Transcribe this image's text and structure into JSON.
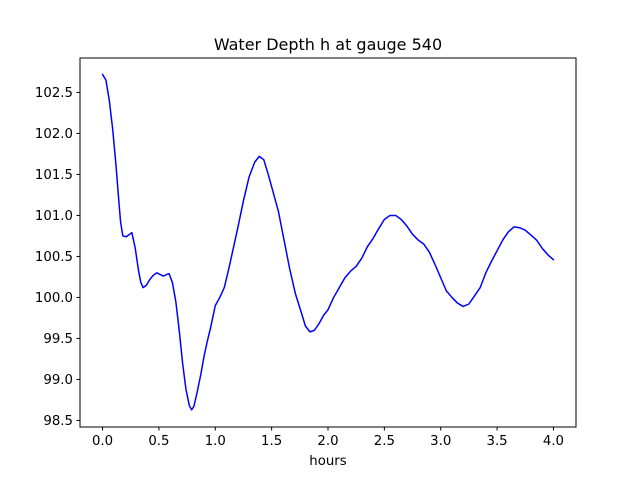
{
  "figure": {
    "background": "#ffffff",
    "title": "Water Depth h at gauge 540",
    "xlabel": "hours"
  },
  "colors": {
    "line": "#0000ff",
    "spine": "#000000",
    "text": "#000000",
    "background": "#ffffff"
  },
  "chart_data": {
    "type": "line",
    "title": "Water Depth h at gauge 540",
    "xlabel": "hours",
    "ylabel": "",
    "xlim": [
      -0.2,
      4.2
    ],
    "ylim": [
      98.42,
      102.92
    ],
    "grid": false,
    "legend": null,
    "line_color": "#0000ff",
    "line_width": 1.5,
    "xticks": [
      0.0,
      0.5,
      1.0,
      1.5,
      2.0,
      2.5,
      3.0,
      3.5,
      4.0
    ],
    "xtick_labels": [
      "0.0",
      "0.5",
      "1.0",
      "1.5",
      "2.0",
      "2.5",
      "3.0",
      "3.5",
      "4.0"
    ],
    "yticks": [
      98.5,
      99.0,
      99.5,
      100.0,
      100.5,
      101.0,
      101.5,
      102.0,
      102.5
    ],
    "ytick_labels": [
      "98.5",
      "99.0",
      "99.5",
      "100.0",
      "100.5",
      "101.0",
      "101.5",
      "102.0",
      "102.5"
    ],
    "series": [
      {
        "name": "h",
        "x": [
          0.0,
          0.03,
          0.06,
          0.09,
          0.12,
          0.14,
          0.16,
          0.18,
          0.21,
          0.24,
          0.26,
          0.29,
          0.32,
          0.34,
          0.36,
          0.39,
          0.42,
          0.45,
          0.48,
          0.51,
          0.54,
          0.57,
          0.59,
          0.62,
          0.65,
          0.68,
          0.71,
          0.74,
          0.77,
          0.79,
          0.81,
          0.84,
          0.87,
          0.9,
          0.93,
          0.96,
          1.0,
          1.04,
          1.08,
          1.12,
          1.16,
          1.2,
          1.25,
          1.3,
          1.35,
          1.39,
          1.43,
          1.47,
          1.52,
          1.56,
          1.61,
          1.66,
          1.71,
          1.76,
          1.8,
          1.84,
          1.88,
          1.92,
          1.96,
          2.0,
          2.05,
          2.1,
          2.15,
          2.2,
          2.25,
          2.3,
          2.35,
          2.4,
          2.45,
          2.5,
          2.55,
          2.6,
          2.65,
          2.7,
          2.75,
          2.8,
          2.85,
          2.9,
          2.95,
          3.0,
          3.05,
          3.1,
          3.15,
          3.2,
          3.25,
          3.3,
          3.35,
          3.4,
          3.45,
          3.5,
          3.55,
          3.6,
          3.65,
          3.7,
          3.75,
          3.8,
          3.85,
          3.9,
          3.95,
          4.0
        ],
        "y": [
          102.72,
          102.65,
          102.4,
          102.05,
          101.6,
          101.25,
          100.92,
          100.75,
          100.74,
          100.77,
          100.79,
          100.6,
          100.32,
          100.18,
          100.12,
          100.15,
          100.22,
          100.27,
          100.3,
          100.28,
          100.26,
          100.28,
          100.29,
          100.18,
          99.95,
          99.6,
          99.2,
          98.88,
          98.68,
          98.63,
          98.67,
          98.85,
          99.05,
          99.28,
          99.47,
          99.64,
          99.9,
          100.0,
          100.12,
          100.35,
          100.6,
          100.85,
          101.18,
          101.47,
          101.65,
          101.72,
          101.68,
          101.5,
          101.25,
          101.05,
          100.7,
          100.35,
          100.05,
          99.83,
          99.65,
          99.58,
          99.6,
          99.68,
          99.78,
          99.85,
          100.0,
          100.12,
          100.24,
          100.32,
          100.38,
          100.48,
          100.62,
          100.72,
          100.84,
          100.95,
          101.0,
          101.0,
          100.95,
          100.87,
          100.77,
          100.7,
          100.65,
          100.55,
          100.4,
          100.24,
          100.08,
          100.0,
          99.93,
          99.89,
          99.92,
          100.02,
          100.12,
          100.3,
          100.44,
          100.57,
          100.7,
          100.8,
          100.86,
          100.85,
          100.82,
          100.76,
          100.7,
          100.6,
          100.52,
          100.46
        ]
      }
    ]
  }
}
